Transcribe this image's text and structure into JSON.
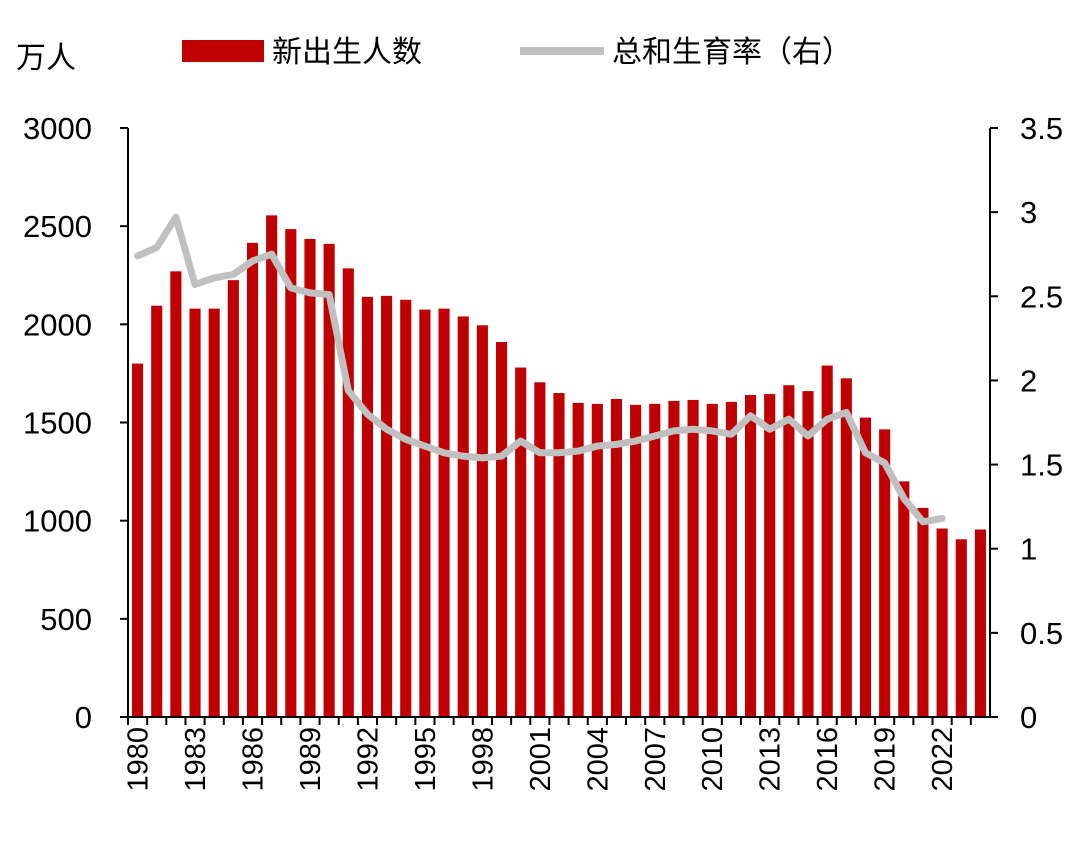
{
  "chart_data": {
    "type": "bar+line",
    "y_left_unit": "万人",
    "y_left_ticks": [
      "0",
      "500",
      "1000",
      "1500",
      "2000",
      "2500",
      "3000"
    ],
    "y_left_range": [
      0,
      3000
    ],
    "y_right_ticks": [
      "0",
      "0.5",
      "1",
      "1.5",
      "2",
      "2.5",
      "3",
      "3.5"
    ],
    "y_right_range": [
      0,
      3.5
    ],
    "x_tick_labels": [
      "1980",
      "1983",
      "1986",
      "1989",
      "1992",
      "1995",
      "1998",
      "2001",
      "2004",
      "2007",
      "2010",
      "2013",
      "2016",
      "2019",
      "2022"
    ],
    "years": [
      1980,
      1981,
      1982,
      1983,
      1984,
      1985,
      1986,
      1987,
      1988,
      1989,
      1990,
      1991,
      1992,
      1993,
      1994,
      1995,
      1996,
      1997,
      1998,
      1999,
      2000,
      2001,
      2002,
      2003,
      2004,
      2005,
      2006,
      2007,
      2008,
      2009,
      2010,
      2011,
      2012,
      2013,
      2014,
      2015,
      2016,
      2017,
      2018,
      2019,
      2020,
      2021,
      2022,
      2023,
      2024
    ],
    "legend_position": "top",
    "grid": false,
    "series": [
      {
        "name": "新出生人数",
        "type": "bar",
        "axis": "left",
        "color": "#C00000",
        "values": [
          1800,
          2095,
          2270,
          2080,
          2080,
          2225,
          2415,
          2555,
          2485,
          2435,
          2410,
          2285,
          2140,
          2145,
          2125,
          2075,
          2080,
          2040,
          1995,
          1910,
          1780,
          1705,
          1650,
          1600,
          1595,
          1620,
          1590,
          1595,
          1610,
          1615,
          1595,
          1605,
          1640,
          1645,
          1690,
          1660,
          1790,
          1725,
          1525,
          1465,
          1200,
          1065,
          960,
          905,
          955
        ]
      },
      {
        "name": "总和生育率（右）",
        "type": "line",
        "axis": "right",
        "color": "#C0C0C0",
        "values": [
          2.74,
          2.79,
          2.97,
          2.57,
          2.61,
          2.63,
          2.71,
          2.75,
          2.55,
          2.52,
          2.51,
          1.94,
          1.8,
          1.71,
          1.65,
          1.61,
          1.57,
          1.55,
          1.54,
          1.55,
          1.64,
          1.57,
          1.57,
          1.58,
          1.61,
          1.62,
          1.64,
          1.67,
          1.7,
          1.71,
          1.7,
          1.68,
          1.79,
          1.71,
          1.77,
          1.67,
          1.77,
          1.81,
          1.57,
          1.51,
          1.3,
          1.16,
          1.18
        ]
      }
    ]
  }
}
